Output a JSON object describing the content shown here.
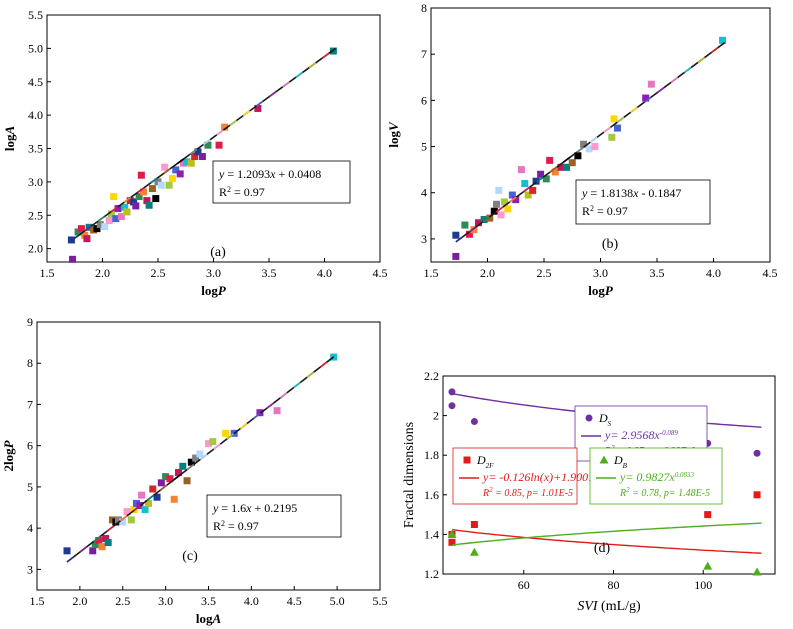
{
  "colors": {
    "fit_line": "#1a1a1a",
    "ds": "#7030a0",
    "d2f": "#e01b1b",
    "db": "#4caf1a",
    "palette": [
      "#1f3a93",
      "#7a1fa2",
      "#2e8b57",
      "#e6194b",
      "#f58231",
      "#c2185b",
      "#008080",
      "#9a6324",
      "#000000",
      "#808080",
      "#b3d9ff",
      "#ff99cc",
      "#a3c940",
      "#ffd700",
      "#4363d8",
      "#911eb4",
      "#e377c2",
      "#17becf",
      "#bcbd22",
      "#d62728"
    ]
  },
  "chart_data": [
    {
      "id": "a",
      "type": "scatter",
      "panel_label": "(a)",
      "xlabel": "logP",
      "ylabel": "logA",
      "xlim": [
        1.5,
        4.5
      ],
      "ylim": [
        1.8,
        5.5
      ],
      "xticks": [
        "1.5",
        "2.0",
        "2.5",
        "3.0",
        "3.5",
        "4.0",
        "4.5"
      ],
      "yticks": [
        "2.0",
        "2.5",
        "3.0",
        "3.5",
        "4.0",
        "4.5",
        "5.0",
        "5.5"
      ],
      "equation": "y = 1.2093x + 0.0408",
      "r2": "R2 = 0.97",
      "fit": {
        "slope": 1.2093,
        "intercept": 0.0408,
        "x_range": [
          1.72,
          4.1
        ]
      },
      "points": [
        [
          1.72,
          2.13
        ],
        [
          1.73,
          1.84
        ],
        [
          1.78,
          2.25
        ],
        [
          1.81,
          2.3
        ],
        [
          1.84,
          2.2
        ],
        [
          1.86,
          2.15
        ],
        [
          1.88,
          2.32
        ],
        [
          1.92,
          2.28
        ],
        [
          1.95,
          2.3
        ],
        [
          1.98,
          2.36
        ],
        [
          2.02,
          2.33
        ],
        [
          2.06,
          2.42
        ],
        [
          2.08,
          2.52
        ],
        [
          2.1,
          2.78
        ],
        [
          2.12,
          2.45
        ],
        [
          2.14,
          2.6
        ],
        [
          2.17,
          2.48
        ],
        [
          2.2,
          2.62
        ],
        [
          2.22,
          2.55
        ],
        [
          2.25,
          2.72
        ],
        [
          2.28,
          2.7
        ],
        [
          2.3,
          2.64
        ],
        [
          2.33,
          2.78
        ],
        [
          2.35,
          3.1
        ],
        [
          2.37,
          2.85
        ],
        [
          2.4,
          2.72
        ],
        [
          2.42,
          2.65
        ],
        [
          2.45,
          2.9
        ],
        [
          2.48,
          2.75
        ],
        [
          2.5,
          3.0
        ],
        [
          2.53,
          2.95
        ],
        [
          2.56,
          3.22
        ],
        [
          2.6,
          2.95
        ],
        [
          2.63,
          3.05
        ],
        [
          2.66,
          3.18
        ],
        [
          2.7,
          3.12
        ],
        [
          2.73,
          3.28
        ],
        [
          2.76,
          3.3
        ],
        [
          2.8,
          3.28
        ],
        [
          2.83,
          3.38
        ],
        [
          2.86,
          3.45
        ],
        [
          2.9,
          3.38
        ],
        [
          2.95,
          3.55
        ],
        [
          3.05,
          3.55
        ],
        [
          3.1,
          3.82
        ],
        [
          3.4,
          4.1
        ],
        [
          4.08,
          4.96
        ]
      ]
    },
    {
      "id": "b",
      "type": "scatter",
      "panel_label": "(b)",
      "xlabel": "logP",
      "ylabel": "logV",
      "xlim": [
        1.5,
        4.5
      ],
      "ylim": [
        2.5,
        8
      ],
      "xticks": [
        "1.5",
        "2.0",
        "2.5",
        "3.0",
        "3.5",
        "4.0",
        "4.5"
      ],
      "yticks": [
        "3",
        "4",
        "5",
        "6",
        "7",
        "8"
      ],
      "equation": "y = 1.8138x - 0.1847",
      "r2": "R2 = 0.97",
      "fit": {
        "slope": 1.8138,
        "intercept": -0.1847,
        "x_range": [
          1.72,
          4.1
        ]
      },
      "points": [
        [
          1.72,
          3.08
        ],
        [
          1.72,
          2.62
        ],
        [
          1.8,
          3.3
        ],
        [
          1.84,
          3.1
        ],
        [
          1.88,
          3.2
        ],
        [
          1.92,
          3.35
        ],
        [
          1.97,
          3.42
        ],
        [
          2.02,
          3.45
        ],
        [
          2.06,
          3.6
        ],
        [
          2.08,
          3.75
        ],
        [
          2.1,
          4.05
        ],
        [
          2.12,
          3.52
        ],
        [
          2.15,
          3.8
        ],
        [
          2.18,
          3.65
        ],
        [
          2.22,
          3.95
        ],
        [
          2.25,
          3.85
        ],
        [
          2.3,
          4.5
        ],
        [
          2.33,
          4.2
        ],
        [
          2.36,
          3.95
        ],
        [
          2.4,
          4.05
        ],
        [
          2.43,
          4.25
        ],
        [
          2.47,
          4.4
        ],
        [
          2.52,
          4.3
        ],
        [
          2.55,
          4.7
        ],
        [
          2.6,
          4.45
        ],
        [
          2.65,
          4.55
        ],
        [
          2.7,
          4.55
        ],
        [
          2.75,
          4.65
        ],
        [
          2.8,
          4.8
        ],
        [
          2.85,
          5.05
        ],
        [
          2.9,
          4.95
        ],
        [
          2.95,
          5.0
        ],
        [
          3.1,
          5.2
        ],
        [
          3.12,
          5.6
        ],
        [
          3.15,
          5.4
        ],
        [
          3.4,
          6.05
        ],
        [
          3.45,
          6.35
        ],
        [
          4.08,
          7.3
        ]
      ]
    },
    {
      "id": "c",
      "type": "scatter",
      "panel_label": "(c)",
      "xlabel": "logA",
      "ylabel": "2logP",
      "xlim": [
        1.5,
        5.5
      ],
      "ylim": [
        2.5,
        9
      ],
      "xticks": [
        "1.5",
        "2.0",
        "2.5",
        "3.0",
        "3.5",
        "4.0",
        "4.5",
        "5.0",
        "5.5"
      ],
      "yticks": [
        "3",
        "4",
        "5",
        "6",
        "7",
        "8",
        "9"
      ],
      "equation": "y = 1.6x + 0.2195",
      "r2": "R2 = 0.97",
      "fit": {
        "slope": 1.6,
        "intercept": 0.2195,
        "x_range": [
          1.85,
          4.96
        ]
      },
      "points": [
        [
          1.85,
          3.45
        ],
        [
          2.15,
          3.45
        ],
        [
          2.18,
          3.6
        ],
        [
          2.22,
          3.7
        ],
        [
          2.26,
          3.55
        ],
        [
          2.3,
          3.75
        ],
        [
          2.33,
          3.65
        ],
        [
          2.38,
          4.2
        ],
        [
          2.42,
          4.15
        ],
        [
          2.45,
          4.2
        ],
        [
          2.5,
          4.15
        ],
        [
          2.55,
          4.4
        ],
        [
          2.6,
          4.2
        ],
        [
          2.63,
          4.45
        ],
        [
          2.66,
          4.6
        ],
        [
          2.7,
          4.55
        ],
        [
          2.72,
          4.8
        ],
        [
          2.76,
          4.45
        ],
        [
          2.8,
          4.6
        ],
        [
          2.85,
          4.95
        ],
        [
          2.9,
          4.75
        ],
        [
          2.95,
          5.1
        ],
        [
          3.0,
          5.25
        ],
        [
          3.05,
          5.2
        ],
        [
          3.1,
          4.7
        ],
        [
          3.15,
          5.35
        ],
        [
          3.2,
          5.5
        ],
        [
          3.25,
          5.15
        ],
        [
          3.3,
          5.6
        ],
        [
          3.35,
          5.7
        ],
        [
          3.4,
          5.8
        ],
        [
          3.5,
          6.05
        ],
        [
          3.55,
          6.1
        ],
        [
          3.7,
          6.3
        ],
        [
          3.8,
          6.3
        ],
        [
          4.1,
          6.8
        ],
        [
          4.3,
          6.85
        ],
        [
          4.96,
          8.15
        ]
      ]
    },
    {
      "id": "d",
      "type": "scatter",
      "panel_label": "(d)",
      "xlabel": "SVI (mL/g)",
      "ylabel": "Fractal dimensions",
      "xlim": [
        42,
        116
      ],
      "ylim": [
        1.2,
        2.2
      ],
      "xticks": [
        "60",
        "80",
        "100"
      ],
      "yticks": [
        "1.2",
        "1.4",
        "1.6",
        "1.8",
        "2",
        "2.2"
      ],
      "series": [
        {
          "name": "Ds",
          "name_main": "D",
          "name_sub": "S",
          "color_key": "ds",
          "marker": "circle",
          "equation_main": "y= 2.9568x",
          "equation_exp": "-0.089",
          "stats": "R2 = 0.87, p= 6.92E-6",
          "points": [
            [
              44,
              2.12
            ],
            [
              44,
              2.05
            ],
            [
              49,
              1.97
            ],
            [
              101,
              1.86
            ],
            [
              112,
              1.81
            ]
          ],
          "fit": {
            "form": "power",
            "a": 2.9568,
            "b": -0.089,
            "x_range": [
              44,
              113
            ]
          }
        },
        {
          "name": "D2F",
          "name_main": "D",
          "name_sub": "2F",
          "color_key": "d2f",
          "marker": "square",
          "equation_main": "y= -0.126ln(x)+1.9007",
          "equation_exp": "",
          "stats": "R2 = 0.85, p= 1.01E-5",
          "points": [
            [
              44,
              1.36
            ],
            [
              44,
              1.4
            ],
            [
              49,
              1.45
            ],
            [
              101,
              1.5
            ],
            [
              112,
              1.6
            ]
          ],
          "fit": {
            "form": "log",
            "a": -0.126,
            "b": 1.9007,
            "x_range": [
              44,
              113
            ]
          }
        },
        {
          "name": "DB",
          "name_main": "D",
          "name_sub": "B",
          "color_key": "db",
          "marker": "triangle",
          "equation_main": "y= 0.9827x",
          "equation_exp": "0.0833",
          "stats": "R2 = 0.78, p= 1.48E-5",
          "points": [
            [
              44,
              1.4
            ],
            [
              49,
              1.31
            ],
            [
              101,
              1.24
            ],
            [
              112,
              1.21
            ]
          ],
          "fit": {
            "form": "power",
            "a": 0.9827,
            "b": 0.0833,
            "x_range": [
              44,
              113
            ]
          }
        }
      ]
    }
  ]
}
